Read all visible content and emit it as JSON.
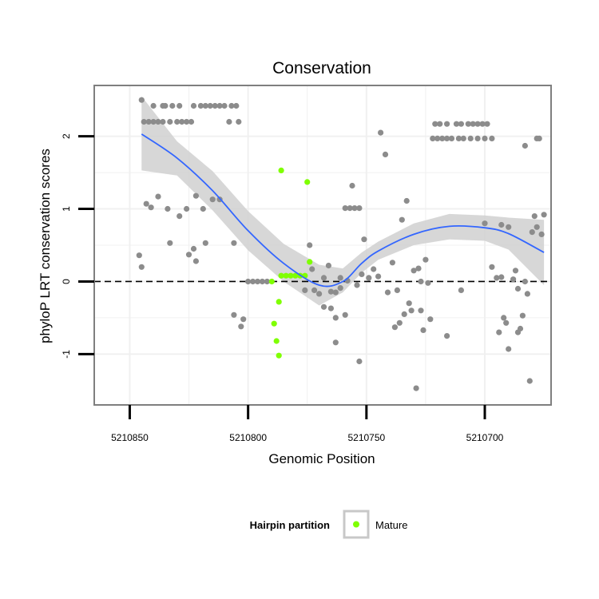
{
  "chart_data": {
    "type": "scatter",
    "title": "Conservation",
    "xlabel": "Genomic Position",
    "ylabel": "phyloP LRT conservation scores",
    "x_reversed": true,
    "xlim": [
      5210865,
      5210672
    ],
    "ylim": [
      -1.7,
      2.7
    ],
    "x_ticks": [
      5210850,
      5210800,
      5210750,
      5210700
    ],
    "x_tick_labels": [
      "5210850",
      "5210800",
      "5210750",
      "5210700"
    ],
    "y_ticks": [
      -1,
      0,
      1,
      2
    ],
    "y_tick_labels": [
      "-1",
      "0",
      "1",
      "2"
    ],
    "reference_line": {
      "y": 0,
      "style": "dashed"
    },
    "grid": true,
    "legend": {
      "title": "Hairpin partition",
      "position": "bottom",
      "entries": [
        {
          "label": "Mature",
          "color": "#7FFF00"
        }
      ]
    },
    "colors": {
      "other_points": "#8C8C8C",
      "mature_points": "#7FFF00",
      "smooth_line": "#3366FF",
      "confidence_band": "#D0D0D0",
      "panel_background": "#FFFFFF",
      "grid": "#F0F0F0"
    },
    "series": [
      {
        "name": "Mature",
        "color": "#7FFF00",
        "points": [
          [
            5210786,
            1.53
          ],
          [
            5210775,
            1.37
          ],
          [
            5210774,
            0.27
          ],
          [
            5210790,
            0.0
          ],
          [
            5210786,
            0.08
          ],
          [
            5210784,
            0.08
          ],
          [
            5210782,
            0.08
          ],
          [
            5210780,
            0.08
          ],
          [
            5210778,
            0.08
          ],
          [
            5210776,
            0.08
          ],
          [
            5210787,
            -0.28
          ],
          [
            5210789,
            -0.58
          ],
          [
            5210788,
            -0.82
          ],
          [
            5210787,
            -1.02
          ]
        ]
      },
      {
        "color": "#8C8C8C",
        "points": [
          [
            5210845,
            2.5
          ],
          [
            5210840,
            2.42
          ],
          [
            5210836,
            2.42
          ],
          [
            5210835,
            2.42
          ],
          [
            5210832,
            2.42
          ],
          [
            5210829,
            2.42
          ],
          [
            5210823,
            2.42
          ],
          [
            5210820,
            2.42
          ],
          [
            5210818,
            2.42
          ],
          [
            5210816,
            2.42
          ],
          [
            5210814,
            2.42
          ],
          [
            5210812,
            2.42
          ],
          [
            5210810,
            2.42
          ],
          [
            5210807,
            2.42
          ],
          [
            5210805,
            2.42
          ],
          [
            5210844,
            2.2
          ],
          [
            5210842,
            2.2
          ],
          [
            5210840,
            2.2
          ],
          [
            5210838,
            2.2
          ],
          [
            5210836,
            2.2
          ],
          [
            5210833,
            2.2
          ],
          [
            5210830,
            2.2
          ],
          [
            5210828,
            2.2
          ],
          [
            5210826,
            2.2
          ],
          [
            5210824,
            2.2
          ],
          [
            5210808,
            2.2
          ],
          [
            5210804,
            2.2
          ],
          [
            5210843,
            1.07
          ],
          [
            5210841,
            1.02
          ],
          [
            5210838,
            1.17
          ],
          [
            5210834,
            1.0
          ],
          [
            5210829,
            0.9
          ],
          [
            5210826,
            1.0
          ],
          [
            5210822,
            1.18
          ],
          [
            5210819,
            1.0
          ],
          [
            5210815,
            1.13
          ],
          [
            5210812,
            1.13
          ],
          [
            5210833,
            0.53
          ],
          [
            5210825,
            0.37
          ],
          [
            5210823,
            0.45
          ],
          [
            5210818,
            0.53
          ],
          [
            5210806,
            0.53
          ],
          [
            5210846,
            0.36
          ],
          [
            5210845,
            0.2
          ],
          [
            5210822,
            0.28
          ],
          [
            5210806,
            -0.46
          ],
          [
            5210802,
            -0.52
          ],
          [
            5210803,
            -0.62
          ],
          [
            5210800,
            0.0
          ],
          [
            5210798,
            0.0
          ],
          [
            5210796,
            0.0
          ],
          [
            5210794,
            0.0
          ],
          [
            5210792,
            0.0
          ],
          [
            5210774,
            0.5
          ],
          [
            5210773,
            0.17
          ],
          [
            5210768,
            0.05
          ],
          [
            5210766,
            0.22
          ],
          [
            5210776,
            -0.12
          ],
          [
            5210772,
            -0.12
          ],
          [
            5210770,
            -0.17
          ],
          [
            5210768,
            -0.35
          ],
          [
            5210765,
            -0.37
          ],
          [
            5210765,
            -0.14
          ],
          [
            5210763,
            -0.15
          ],
          [
            5210761,
            -0.09
          ],
          [
            5210759,
            -0.46
          ],
          [
            5210763,
            -0.5
          ],
          [
            5210761,
            0.05
          ],
          [
            5210758,
            0.01
          ],
          [
            5210763,
            -0.84
          ],
          [
            5210756,
            1.32
          ],
          [
            5210759,
            1.01
          ],
          [
            5210757,
            1.01
          ],
          [
            5210755,
            1.01
          ],
          [
            5210753,
            1.01
          ],
          [
            5210752,
            0.1
          ],
          [
            5210754,
            -0.05
          ],
          [
            5210751,
            0.58
          ],
          [
            5210749,
            0.05
          ],
          [
            5210747,
            0.17
          ],
          [
            5210745,
            0.07
          ],
          [
            5210744,
            2.05
          ],
          [
            5210742,
            1.75
          ],
          [
            5210741,
            -0.15
          ],
          [
            5210739,
            0.26
          ],
          [
            5210738,
            -0.63
          ],
          [
            5210737,
            -0.12
          ],
          [
            5210736,
            -0.57
          ],
          [
            5210735,
            0.85
          ],
          [
            5210734,
            -0.45
          ],
          [
            5210733,
            1.11
          ],
          [
            5210732,
            -0.3
          ],
          [
            5210731,
            -0.4
          ],
          [
            5210730,
            0.15
          ],
          [
            5210729,
            -1.47
          ],
          [
            5210728,
            0.18
          ],
          [
            5210727,
            0.0
          ],
          [
            5210727,
            -0.4
          ],
          [
            5210726,
            -0.67
          ],
          [
            5210725,
            0.3
          ],
          [
            5210724,
            -0.02
          ],
          [
            5210723,
            -0.52
          ],
          [
            5210753,
            -1.1
          ],
          [
            5210721,
            2.17
          ],
          [
            5210719,
            2.17
          ],
          [
            5210716,
            2.17
          ],
          [
            5210712,
            2.17
          ],
          [
            5210710,
            2.17
          ],
          [
            5210707,
            2.17
          ],
          [
            5210705,
            2.17
          ],
          [
            5210703,
            2.17
          ],
          [
            5210701,
            2.17
          ],
          [
            5210699,
            2.17
          ],
          [
            5210722,
            1.97
          ],
          [
            5210720,
            1.97
          ],
          [
            5210718,
            1.97
          ],
          [
            5210716,
            1.97
          ],
          [
            5210714,
            1.97
          ],
          [
            5210711,
            1.97
          ],
          [
            5210709,
            1.97
          ],
          [
            5210706,
            1.97
          ],
          [
            5210703,
            1.97
          ],
          [
            5210700,
            1.97
          ],
          [
            5210697,
            1.97
          ],
          [
            5210700,
            0.8
          ],
          [
            5210693,
            0.78
          ],
          [
            5210690,
            0.75
          ],
          [
            5210695,
            0.05
          ],
          [
            5210693,
            0.06
          ],
          [
            5210697,
            0.2
          ],
          [
            5210692,
            -0.5
          ],
          [
            5210691,
            -0.57
          ],
          [
            5210694,
            -0.7
          ],
          [
            5210690,
            -0.93
          ],
          [
            5210688,
            0.03
          ],
          [
            5210687,
            0.15
          ],
          [
            5210686,
            -0.1
          ],
          [
            5210686,
            -0.7
          ],
          [
            5210685,
            -0.65
          ],
          [
            5210684,
            -0.47
          ],
          [
            5210683,
            0.0
          ],
          [
            5210682,
            -0.17
          ],
          [
            5210683,
            1.87
          ],
          [
            5210681,
            -1.37
          ],
          [
            5210680,
            0.68
          ],
          [
            5210679,
            0.9
          ],
          [
            5210678,
            0.75
          ],
          [
            5210677,
            1.97
          ],
          [
            5210676,
            0.65
          ],
          [
            5210675,
            0.92
          ],
          [
            5210716,
            -0.75
          ],
          [
            5210710,
            -0.12
          ],
          [
            5210678,
            1.97
          ]
        ]
      }
    ],
    "smooth": {
      "x": [
        5210845,
        5210830,
        5210815,
        5210800,
        5210785,
        5210770,
        5210760,
        5210752,
        5210745,
        5210730,
        5210715,
        5210700,
        5210690,
        5210675
      ],
      "y": [
        2.03,
        1.7,
        1.25,
        0.7,
        0.25,
        -0.05,
        0.0,
        0.25,
        0.42,
        0.65,
        0.76,
        0.74,
        0.66,
        0.4
      ],
      "lower": [
        1.53,
        1.46,
        0.98,
        0.43,
        0.0,
        -0.33,
        -0.15,
        0.12,
        0.3,
        0.5,
        0.58,
        0.56,
        0.44,
        -0.05
      ],
      "upper": [
        2.55,
        1.93,
        1.52,
        0.97,
        0.52,
        0.23,
        0.18,
        0.4,
        0.55,
        0.8,
        0.93,
        0.91,
        0.88,
        0.85
      ]
    }
  }
}
